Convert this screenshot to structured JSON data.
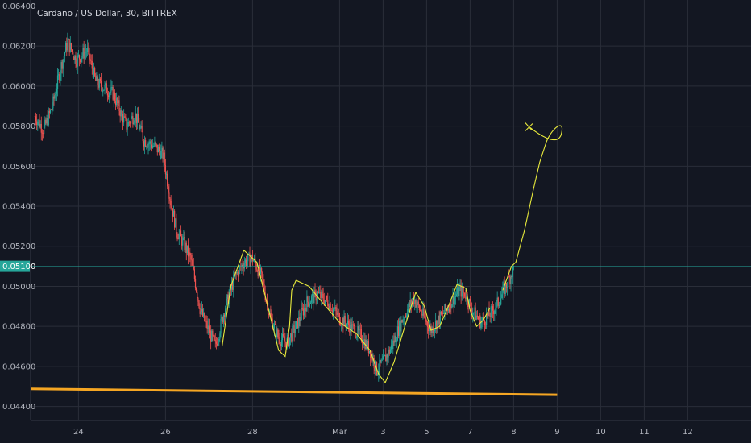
{
  "header": {
    "title": "Cardano / US Dollar, 30, BITTREX"
  },
  "colors": {
    "background": "#131722",
    "grid": "#2a2e39",
    "up": "#26a69a",
    "down": "#ef5350",
    "support_line": "#f5a623",
    "drawing": "#e8ea3c",
    "price_line": "#26a69a"
  },
  "chart_data": {
    "type": "candlestick",
    "title": "Cardano / US Dollar, 30, BITTREX",
    "ylim": [
      0.0433,
      0.0643
    ],
    "x_days": [
      22.9,
      35.0
    ],
    "y_ticks": [
      "0.06400",
      "0.06200",
      "0.06000",
      "0.05800",
      "0.05600",
      "0.05400",
      "0.05200",
      "0.05000",
      "0.04800",
      "0.04600",
      "0.04400"
    ],
    "y_tick_values": [
      0.064,
      0.062,
      0.06,
      0.058,
      0.056,
      0.054,
      0.052,
      0.05,
      0.048,
      0.046,
      0.044
    ],
    "x_ticks": [
      "24",
      "26",
      "28",
      "Mar",
      "3",
      "5",
      "7",
      "8",
      "9",
      "10",
      "11",
      "12"
    ],
    "x_tick_values": [
      24,
      26,
      28,
      30,
      31,
      32,
      33,
      34,
      35,
      36,
      37,
      38
    ],
    "last_price": {
      "label": "0.05100",
      "value": 0.051
    },
    "price_path": [
      [
        23.0,
        0.0585
      ],
      [
        23.2,
        0.0578
      ],
      [
        23.4,
        0.059
      ],
      [
        23.6,
        0.061
      ],
      [
        23.75,
        0.0622
      ],
      [
        23.95,
        0.0613
      ],
      [
        24.2,
        0.0618
      ],
      [
        24.4,
        0.0602
      ],
      [
        24.8,
        0.0596
      ],
      [
        25.1,
        0.058
      ],
      [
        25.3,
        0.0586
      ],
      [
        25.5,
        0.0573
      ],
      [
        25.75,
        0.057
      ],
      [
        25.95,
        0.0565
      ],
      [
        26.1,
        0.0545
      ],
      [
        26.25,
        0.0528
      ],
      [
        26.45,
        0.052
      ],
      [
        26.6,
        0.0512
      ],
      [
        26.8,
        0.0488
      ],
      [
        26.95,
        0.048
      ],
      [
        27.15,
        0.047
      ],
      [
        27.35,
        0.0488
      ],
      [
        27.6,
        0.0505
      ],
      [
        27.8,
        0.0512
      ],
      [
        28.0,
        0.0514
      ],
      [
        28.2,
        0.0505
      ],
      [
        28.4,
        0.0485
      ],
      [
        28.6,
        0.0474
      ],
      [
        28.8,
        0.0472
      ],
      [
        29.0,
        0.048
      ],
      [
        29.25,
        0.0492
      ],
      [
        29.5,
        0.0496
      ],
      [
        29.75,
        0.0492
      ],
      [
        30.0,
        0.0484
      ],
      [
        30.25,
        0.048
      ],
      [
        30.5,
        0.0475
      ],
      [
        30.7,
        0.0468
      ],
      [
        30.85,
        0.0458
      ],
      [
        31.0,
        0.0462
      ],
      [
        31.2,
        0.047
      ],
      [
        31.45,
        0.0484
      ],
      [
        31.7,
        0.0494
      ],
      [
        31.9,
        0.0486
      ],
      [
        32.1,
        0.0478
      ],
      [
        32.3,
        0.0484
      ],
      [
        32.5,
        0.049
      ],
      [
        32.75,
        0.0498
      ],
      [
        32.9,
        0.0496
      ],
      [
        33.05,
        0.0488
      ],
      [
        33.25,
        0.0482
      ],
      [
        33.45,
        0.0486
      ],
      [
        33.65,
        0.0492
      ],
      [
        33.9,
        0.0504
      ],
      [
        34.0,
        0.0509
      ]
    ],
    "support_line": {
      "start": [
        22.9,
        0.04488
      ],
      "end": [
        35.0,
        0.04458
      ]
    },
    "projection_path": [
      [
        33.75,
        0.0498
      ],
      [
        33.95,
        0.051
      ],
      [
        34.05,
        0.0512
      ],
      [
        34.25,
        0.0528
      ],
      [
        34.45,
        0.0548
      ],
      [
        34.6,
        0.0562
      ],
      [
        34.75,
        0.0572
      ]
    ]
  }
}
